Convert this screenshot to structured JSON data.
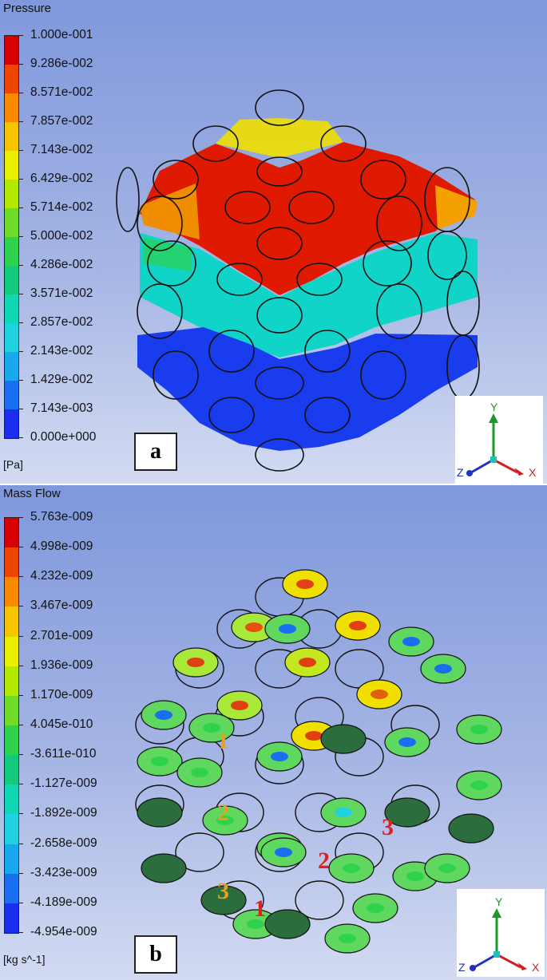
{
  "panel_a": {
    "title": "Pressure",
    "unit": "[Pa]",
    "label": "a",
    "legend_ticks": [
      "1.000e-001",
      "9.286e-002",
      "8.571e-002",
      "7.857e-002",
      "7.143e-002",
      "6.429e-002",
      "5.714e-002",
      "5.000e-002",
      "4.286e-002",
      "3.571e-002",
      "2.857e-002",
      "2.143e-002",
      "1.429e-002",
      "7.143e-003",
      "0.000e+000"
    ],
    "legend_colors": [
      "#d70000",
      "#ee4500",
      "#f98a00",
      "#f6c400",
      "#eaee00",
      "#b3e800",
      "#6fdc2a",
      "#2fd24d",
      "#12c97c",
      "#10d8b2",
      "#1ed2e0",
      "#18a8ee",
      "#1a6ef0",
      "#1a2fee"
    ],
    "axes": {
      "y": "Y",
      "x": "X",
      "z": "Z"
    }
  },
  "panel_b": {
    "title": "Mass Flow",
    "unit": "[kg s^-1]",
    "label": "b",
    "legend_ticks": [
      "5.763e-009",
      "4.998e-009",
      "4.232e-009",
      "3.467e-009",
      "2.701e-009",
      "1.936e-009",
      "1.170e-009",
      "4.045e-010",
      "-3.611e-010",
      "-1.127e-009",
      "-1.892e-009",
      "-2.658e-009",
      "-3.423e-009",
      "-4.189e-009",
      "-4.954e-009"
    ],
    "legend_colors": [
      "#d70000",
      "#ee4500",
      "#f98a00",
      "#f6c400",
      "#eaee00",
      "#b3e800",
      "#6fdc2a",
      "#2fd24d",
      "#12c97c",
      "#10d8b2",
      "#1ed2e0",
      "#18a8ee",
      "#1a6ef0",
      "#1a2fee"
    ],
    "axes": {
      "y": "Y",
      "x": "X",
      "z": "Z"
    },
    "markers": [
      {
        "text": "1",
        "color": "#e8a020"
      },
      {
        "text": "2",
        "color": "#e8a020"
      },
      {
        "text": "3",
        "color": "#e8a020"
      },
      {
        "text": "1",
        "color": "#e02020"
      },
      {
        "text": "2",
        "color": "#e02020"
      },
      {
        "text": "3",
        "color": "#e02020"
      }
    ]
  }
}
